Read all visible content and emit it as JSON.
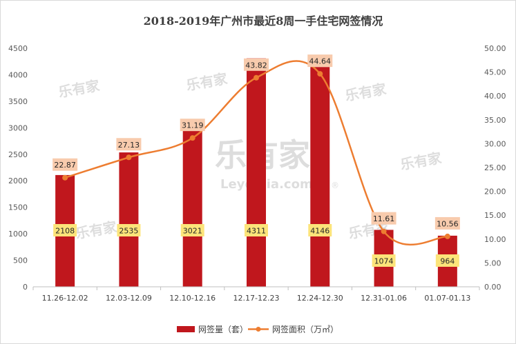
{
  "chart_data": {
    "type": "bar",
    "title": "2018-2019年广州市最近8周一手住宅网签情况",
    "categories": [
      "11.26-12.02",
      "12.03-12.09",
      "12.10-12.16",
      "12.17-12.23",
      "12.24-12.30",
      "12.31-01.06",
      "01.07-01.13"
    ],
    "series": [
      {
        "name": "网签量（套）",
        "type": "bar",
        "axis": "left",
        "color": "#c0171d",
        "values": [
          2108,
          2535,
          3021,
          4311,
          4146,
          1074,
          964
        ]
      },
      {
        "name": "网签面积（万㎡）",
        "type": "line",
        "axis": "right",
        "color": "#ed7d31",
        "smooth": true,
        "values": [
          22.87,
          27.13,
          31.19,
          43.82,
          44.64,
          11.61,
          10.56
        ]
      }
    ],
    "y_left": {
      "range": [
        0,
        4500
      ],
      "ticks": [
        "0",
        "500",
        "1000",
        "1500",
        "2000",
        "2500",
        "3000",
        "3500",
        "4000",
        "4500"
      ]
    },
    "y_right": {
      "range": [
        0,
        50
      ],
      "ticks": [
        "0.00",
        "5.00",
        "10.00",
        "15.00",
        "20.00",
        "25.00",
        "30.00",
        "35.00",
        "40.00",
        "45.00",
        "50.00"
      ]
    },
    "grid": false,
    "legend": "bottom",
    "bar_label_color": "#fce47a",
    "line_label_color": "#f8cbad"
  },
  "watermark": {
    "brand": "乐有家",
    "url": "Leyoujia.com",
    "registered": "®",
    "url_small": "LEYOUJIA.COM"
  }
}
